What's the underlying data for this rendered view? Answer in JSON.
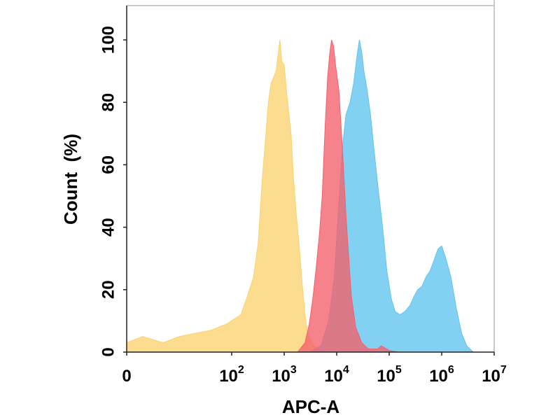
{
  "chart_data": {
    "type": "area",
    "title": "",
    "xlabel": "APC-A",
    "ylabel": "Count  (%)",
    "x_scale": "log",
    "xlim": [
      1,
      10000000
    ],
    "ylim": [
      0,
      110
    ],
    "grid": false,
    "legend": "none",
    "x_ticks": [
      {
        "value": 1,
        "base": "0",
        "exp": ""
      },
      {
        "value": 100,
        "base": "10",
        "exp": "2"
      },
      {
        "value": 1000,
        "base": "10",
        "exp": "3"
      },
      {
        "value": 10000,
        "base": "10",
        "exp": "4"
      },
      {
        "value": 100000,
        "base": "10",
        "exp": "5"
      },
      {
        "value": 1000000,
        "base": "10",
        "exp": "6"
      },
      {
        "value": 10000000,
        "base": "10",
        "exp": "7"
      }
    ],
    "y_ticks": [
      {
        "value": 0,
        "label": "0"
      },
      {
        "value": 20,
        "label": "20"
      },
      {
        "value": 40,
        "label": "40"
      },
      {
        "value": 60,
        "label": "60"
      },
      {
        "value": 80,
        "label": "80"
      },
      {
        "value": 100,
        "label": "100"
      }
    ],
    "series": [
      {
        "color": "#fbd270",
        "points": [
          [
            1,
            3
          ],
          [
            2,
            5
          ],
          [
            5,
            3
          ],
          [
            10,
            5
          ],
          [
            20,
            6
          ],
          [
            40,
            7
          ],
          [
            80,
            9
          ],
          [
            150,
            12
          ],
          [
            200,
            18
          ],
          [
            260,
            24
          ],
          [
            320,
            35
          ],
          [
            380,
            55
          ],
          [
            430,
            66
          ],
          [
            500,
            80
          ],
          [
            560,
            86
          ],
          [
            630,
            88
          ],
          [
            700,
            90
          ],
          [
            760,
            95
          ],
          [
            830,
            100
          ],
          [
            900,
            93
          ],
          [
            1000,
            92
          ],
          [
            1100,
            84
          ],
          [
            1200,
            78
          ],
          [
            1350,
            70
          ],
          [
            1500,
            56
          ],
          [
            1700,
            44
          ],
          [
            1950,
            33
          ],
          [
            2200,
            22
          ],
          [
            2500,
            12
          ],
          [
            2800,
            6
          ],
          [
            3200,
            4
          ],
          [
            3700,
            2
          ],
          [
            4500,
            1
          ],
          [
            6000,
            0
          ]
        ]
      },
      {
        "color": "#60c4ee",
        "points": [
          [
            3000,
            0
          ],
          [
            5000,
            2
          ],
          [
            7000,
            10
          ],
          [
            9000,
            24
          ],
          [
            11000,
            48
          ],
          [
            13000,
            66
          ],
          [
            15000,
            76
          ],
          [
            18000,
            80
          ],
          [
            21000,
            86
          ],
          [
            24000,
            94
          ],
          [
            27000,
            100
          ],
          [
            30000,
            96
          ],
          [
            33000,
            90
          ],
          [
            38000,
            84
          ],
          [
            44000,
            76
          ],
          [
            52000,
            64
          ],
          [
            62000,
            52
          ],
          [
            75000,
            40
          ],
          [
            90000,
            26
          ],
          [
            110000,
            17
          ],
          [
            130000,
            13
          ],
          [
            160000,
            12
          ],
          [
            200000,
            13
          ],
          [
            250000,
            15
          ],
          [
            300000,
            18
          ],
          [
            350000,
            20
          ],
          [
            420000,
            21
          ],
          [
            500000,
            24
          ],
          [
            600000,
            26
          ],
          [
            700000,
            29
          ],
          [
            850000,
            33
          ],
          [
            1000000,
            34
          ],
          [
            1200000,
            30
          ],
          [
            1500000,
            24
          ],
          [
            1900000,
            14
          ],
          [
            2400000,
            6
          ],
          [
            3000000,
            2
          ],
          [
            4000000,
            0
          ]
        ]
      },
      {
        "color": "#f4606c",
        "points": [
          [
            1800,
            0
          ],
          [
            2500,
            3
          ],
          [
            3000,
            9
          ],
          [
            3500,
            17
          ],
          [
            4000,
            26
          ],
          [
            4700,
            38
          ],
          [
            5300,
            50
          ],
          [
            6000,
            72
          ],
          [
            6700,
            88
          ],
          [
            7400,
            96
          ],
          [
            8000,
            100
          ],
          [
            8700,
            98
          ],
          [
            9500,
            92
          ],
          [
            11000,
            84
          ],
          [
            13000,
            64
          ],
          [
            15000,
            44
          ],
          [
            17000,
            30
          ],
          [
            19000,
            18
          ],
          [
            23000,
            8
          ],
          [
            30000,
            3
          ],
          [
            40000,
            1
          ],
          [
            60000,
            1
          ],
          [
            70000,
            2
          ],
          [
            80000,
            1.5
          ],
          [
            100000,
            0.5
          ],
          [
            150000,
            0
          ]
        ]
      }
    ]
  }
}
